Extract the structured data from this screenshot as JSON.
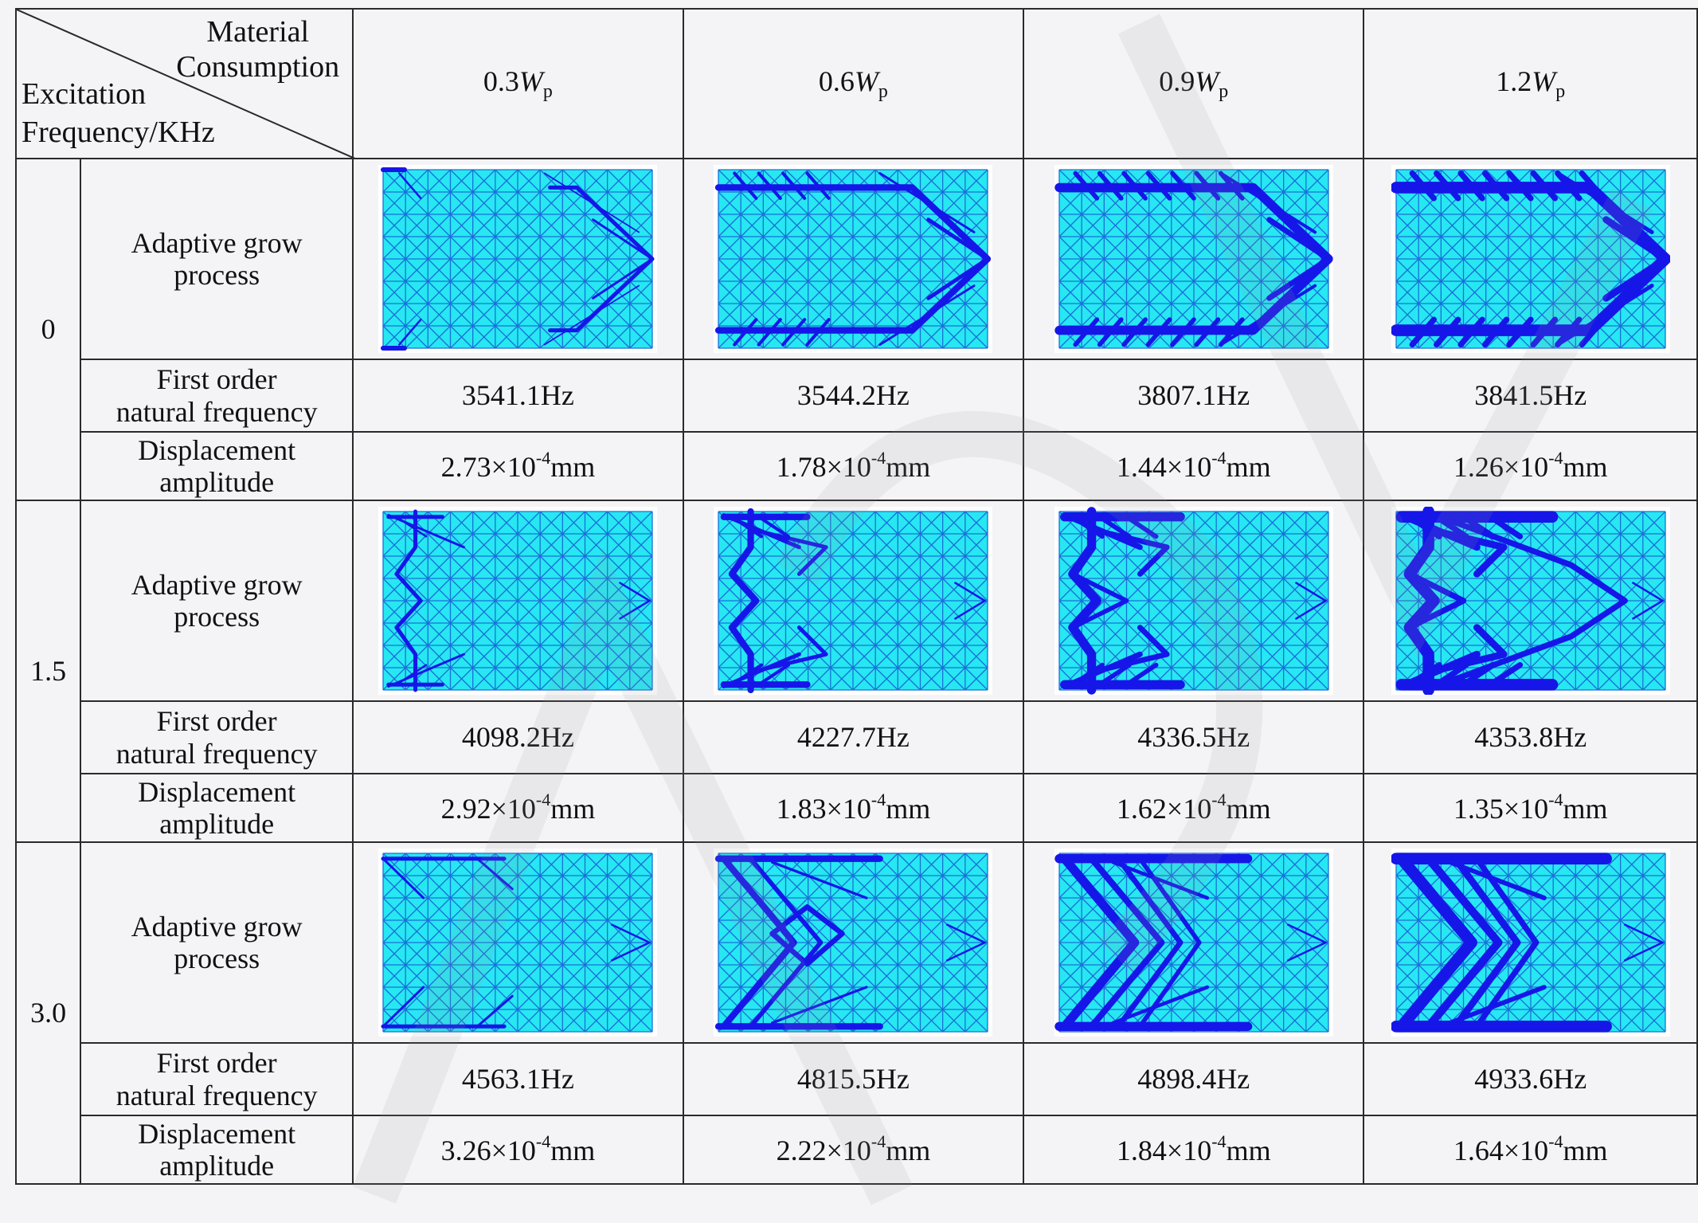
{
  "header": {
    "corner_top": [
      "Material",
      "Consumption"
    ],
    "corner_bottom": [
      "Excitation",
      "Frequency/KHz"
    ],
    "columns": [
      {
        "prefix": "0.3",
        "symbol": "W",
        "sub": "p"
      },
      {
        "prefix": "0.6",
        "symbol": "W",
        "sub": "p"
      },
      {
        "prefix": "0.9",
        "symbol": "W",
        "sub": "p"
      },
      {
        "prefix": "1.2",
        "symbol": "W",
        "sub": "p"
      }
    ]
  },
  "row_labels": {
    "process": [
      "Adaptive grow",
      "process"
    ],
    "frequency": [
      "First order",
      "natural frequency"
    ],
    "displacement": [
      "Displacement",
      "amplitude"
    ]
  },
  "groups": [
    {
      "excitation": "0",
      "frequencies": [
        "3541.1Hz",
        "3544.2Hz",
        "3807.1Hz",
        "3841.5Hz"
      ],
      "displacements": [
        {
          "mantissa": "2.73×10",
          "exp": "-4",
          "unit": "mm"
        },
        {
          "mantissa": "1.78×10",
          "exp": "-4",
          "unit": "mm"
        },
        {
          "mantissa": "1.44×10",
          "exp": "-4",
          "unit": "mm"
        },
        {
          "mantissa": "1.26×10",
          "exp": "-4",
          "unit": "mm"
        }
      ],
      "pattern": "chevron-right"
    },
    {
      "excitation": "1.5",
      "frequencies": [
        "4098.2Hz",
        "4227.7Hz",
        "4336.5Hz",
        "4353.8Hz"
      ],
      "displacements": [
        {
          "mantissa": "2.92×10",
          "exp": "-4",
          "unit": "mm"
        },
        {
          "mantissa": "1.83×10",
          "exp": "-4",
          "unit": "mm"
        },
        {
          "mantissa": "1.62×10",
          "exp": "-4",
          "unit": "mm"
        },
        {
          "mantissa": "1.35×10",
          "exp": "-4",
          "unit": "mm"
        }
      ],
      "pattern": "zigzag-left"
    },
    {
      "excitation": "3.0",
      "frequencies": [
        "4563.1Hz",
        "4815.5Hz",
        "4898.4Hz",
        "4933.6Hz"
      ],
      "displacements": [
        {
          "mantissa": "3.26×10",
          "exp": "-4",
          "unit": "mm"
        },
        {
          "mantissa": "2.22×10",
          "exp": "-4",
          "unit": "mm"
        },
        {
          "mantissa": "1.84×10",
          "exp": "-4",
          "unit": "mm"
        },
        {
          "mantissa": "1.64×10",
          "exp": "-4",
          "unit": "mm"
        }
      ],
      "pattern": "chevron-left"
    }
  ],
  "colors": {
    "mesh_fill": "#27e7f2",
    "mesh_line": "#1a70d8",
    "structure": "#1616e8",
    "watermark": "#9a9a9a"
  }
}
